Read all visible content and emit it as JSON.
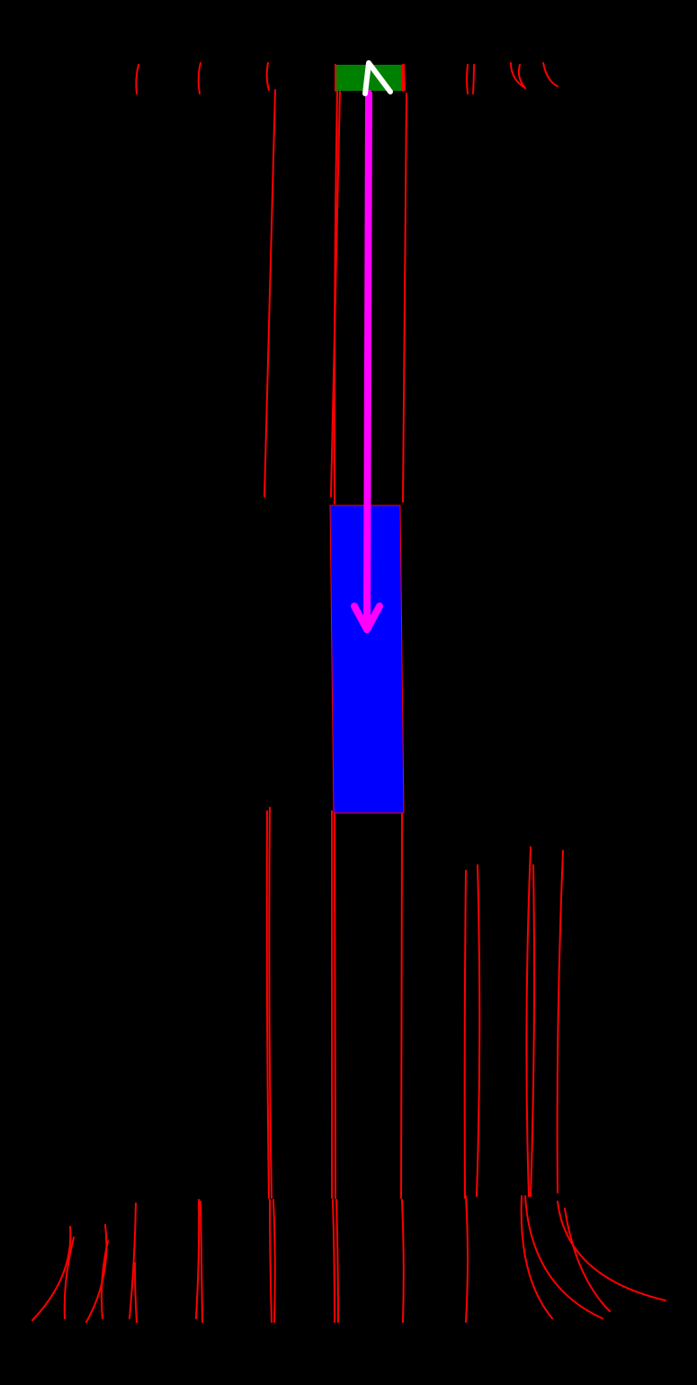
{
  "scene": {
    "background_color": "#000000",
    "lane_line_color": "#ff0000",
    "start_region_color": "#008000",
    "target_region_color": "#0000ff",
    "trajectory_arrow_color": "#ff00ff",
    "heading_marker_color": "#ffffff"
  }
}
